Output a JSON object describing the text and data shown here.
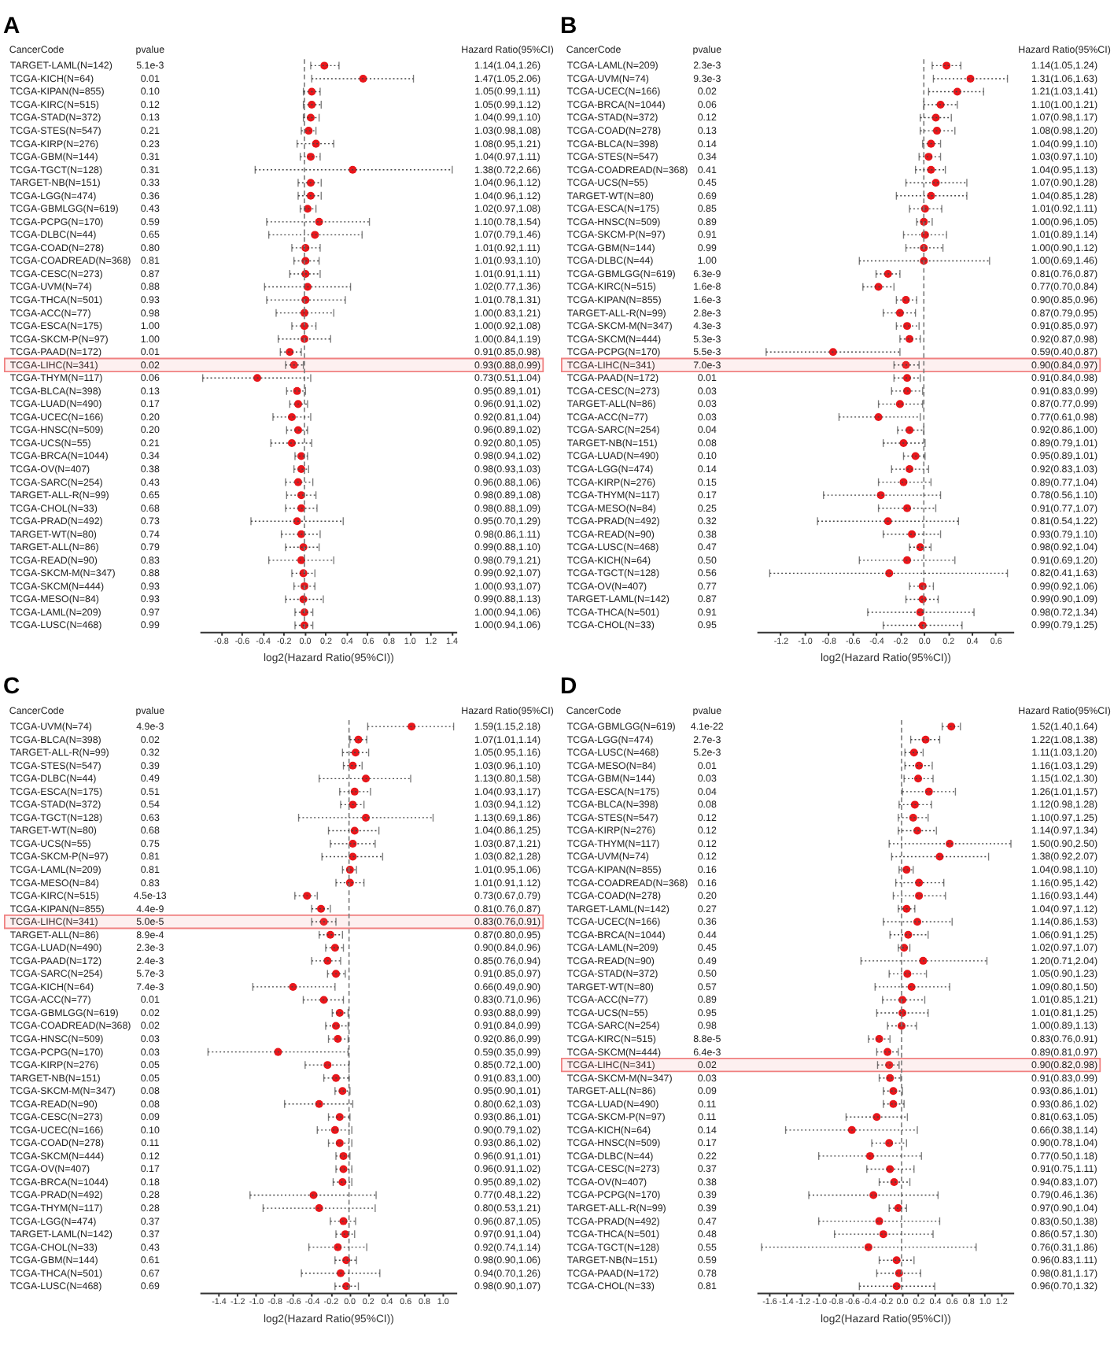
{
  "chart_data": [
    {
      "type": "scatter",
      "title": "A",
      "orientation": "horizontal",
      "marker": "circle",
      "color": "#e8161b",
      "xlabel": "log2(Hazard Ratio(95%CI))",
      "categories": [
        "TARGET-LAML(N=142)",
        "TCGA-KICH(N=64)",
        "TCGA-KIPAN(N=855)",
        "TCGA-KIRC(N=515)",
        "TCGA-STAD(N=372)",
        "TCGA-STES(N=547)",
        "TCGA-KIRP(N=276)",
        "TCGA-GBM(N=144)",
        "TCGA-TGCT(N=128)",
        "TARGET-NB(N=151)",
        "TCGA-LGG(N=474)",
        "TCGA-GBMLGG(N=619)",
        "TCGA-PCPG(N=170)",
        "TCGA-DLBC(N=44)",
        "TCGA-COAD(N=278)",
        "TCGA-COADREAD(N=368)",
        "TCGA-CESC(N=273)",
        "TCGA-UVM(N=74)",
        "TCGA-THCA(N=501)",
        "TCGA-ACC(N=77)",
        "TCGA-ESCA(N=175)",
        "TCGA-SKCM-P(N=97)",
        "TCGA-PAAD(N=172)",
        "TCGA-LIHC(N=341)",
        "TCGA-THYM(N=117)",
        "TCGA-BLCA(N=398)",
        "TCGA-LUAD(N=490)",
        "TCGA-UCEC(N=166)",
        "TCGA-HNSC(N=509)",
        "TCGA-UCS(N=55)",
        "TCGA-BRCA(N=1044)",
        "TCGA-OV(N=407)",
        "TCGA-SARC(N=254)",
        "TARGET-ALL-R(N=99)",
        "TCGA-CHOL(N=33)",
        "TCGA-PRAD(N=492)",
        "TARGET-WT(N=80)",
        "TARGET-ALL(N=86)",
        "TCGA-READ(N=90)",
        "TCGA-SKCM-M(N=347)",
        "TCGA-SKCM(N=444)",
        "TCGA-MESO(N=84)",
        "TCGA-LAML(N=209)",
        "TCGA-LUSC(N=468)"
      ],
      "values": [
        0.19,
        0.56,
        0.07,
        0.07,
        0.06,
        0.04,
        0.11,
        0.06,
        0.46,
        0.06,
        0.06,
        0.03,
        0.14,
        0.1,
        0.01,
        0.01,
        0.01,
        0.03,
        0.01,
        0,
        0,
        0,
        -0.14,
        -0.1,
        -0.45,
        -0.07,
        -0.06,
        -0.12,
        -0.06,
        -0.12,
        -0.03,
        -0.03,
        -0.06,
        -0.03,
        -0.03,
        -0.07,
        -0.03,
        -0.01,
        -0.03,
        -0.01,
        0,
        -0.01,
        0,
        0
      ],
      "errors": [
        [
          0.06,
          0.33
        ],
        [
          0.07,
          1.04
        ],
        [
          -0.01,
          0.15
        ],
        [
          -0.01,
          0.16
        ],
        [
          -0.01,
          0.14
        ],
        [
          -0.03,
          0.11
        ],
        [
          -0.07,
          0.28
        ],
        [
          -0.04,
          0.15
        ],
        [
          -0.47,
          1.41
        ],
        [
          -0.06,
          0.16
        ],
        [
          -0.06,
          0.16
        ],
        [
          -0.04,
          0.11
        ],
        [
          -0.36,
          0.62
        ],
        [
          -0.34,
          0.55
        ],
        [
          -0.12,
          0.15
        ],
        [
          -0.1,
          0.14
        ],
        [
          -0.14,
          0.15
        ],
        [
          -0.38,
          0.44
        ],
        [
          -0.36,
          0.39
        ],
        [
          -0.27,
          0.28
        ],
        [
          -0.12,
          0.11
        ],
        [
          -0.25,
          0.25
        ],
        [
          -0.23,
          -0.03
        ],
        [
          -0.18,
          -0.01
        ],
        [
          -0.97,
          0.06
        ],
        [
          -0.17,
          0.01
        ],
        [
          -0.14,
          0.03
        ],
        [
          -0.3,
          0.06
        ],
        [
          -0.17,
          0.03
        ],
        [
          -0.32,
          0.07
        ],
        [
          -0.09,
          0.03
        ],
        [
          -0.1,
          0.04
        ],
        [
          -0.18,
          0.08
        ],
        [
          -0.17,
          0.11
        ],
        [
          -0.18,
          0.12
        ],
        [
          -0.51,
          0.37
        ],
        [
          -0.22,
          0.15
        ],
        [
          -0.18,
          0.14
        ],
        [
          -0.34,
          0.28
        ],
        [
          -0.12,
          0.1
        ],
        [
          -0.1,
          0.1
        ],
        [
          -0.18,
          0.18
        ],
        [
          -0.09,
          0.08
        ],
        [
          -0.09,
          0.08
        ]
      ],
      "value_labels": [
        "1.14(1.04,1.26)",
        "1.47(1.05,2.06)",
        "1.05(0.99,1.11)",
        "1.05(0.99,1.12)",
        "1.04(0.99,1.10)",
        "1.03(0.98,1.08)",
        "1.08(0.95,1.21)",
        "1.04(0.97,1.11)",
        "1.38(0.72,2.66)",
        "1.04(0.96,1.12)",
        "1.04(0.96,1.12)",
        "1.02(0.97,1.08)",
        "1.10(0.78,1.54)",
        "1.07(0.79,1.46)",
        "1.01(0.92,1.11)",
        "1.01(0.93,1.10)",
        "1.01(0.91,1.11)",
        "1.02(0.77,1.36)",
        "1.01(0.78,1.31)",
        "1.00(0.83,1.21)",
        "1.00(0.92,1.08)",
        "1.00(0.84,1.19)",
        "0.91(0.85,0.98)",
        "0.93(0.88,0.99)",
        "0.73(0.51,1.04)",
        "0.95(0.89,1.01)",
        "0.96(0.91,1.02)",
        "0.92(0.81,1.04)",
        "0.96(0.89,1.02)",
        "0.92(0.80,1.05)",
        "0.98(0.94,1.02)",
        "0.98(0.93,1.03)",
        "0.96(0.88,1.06)",
        "0.98(0.89,1.08)",
        "0.98(0.88,1.09)",
        "0.95(0.70,1.29)",
        "0.98(0.86,1.11)",
        "0.99(0.88,1.10)",
        "0.98(0.79,1.21)",
        "0.99(0.92,1.07)",
        "1.00(0.93,1.07)",
        "0.99(0.88,1.13)",
        "1.00(0.94,1.06)",
        "1.00(0.94,1.06)"
      ],
      "annotations": [
        "CancerCode",
        "pvalue",
        "Hazard Ratio(95%CI)",
        "5.1e-3",
        "0.01",
        "0.10",
        "0.12",
        "0.13",
        "0.21",
        "0.23",
        "0.31",
        "0.31",
        "0.33",
        "0.36",
        "0.43",
        "0.59",
        "0.65",
        "0.80",
        "0.81",
        "0.87",
        "0.88",
        "0.93",
        "0.98",
        "1.00",
        "1.00",
        "0.01",
        "0.02",
        "0.06",
        "0.13",
        "0.17",
        "0.20",
        "0.20",
        "0.21",
        "0.34",
        "0.38",
        "0.43",
        "0.65",
        "0.68",
        "0.73",
        "0.74",
        "0.79",
        "0.83",
        "0.88",
        "0.93",
        "0.93",
        "0.97",
        "0.99"
      ],
      "xlim": [
        -1.0,
        1.45
      ],
      "xticks": [
        -0.8,
        -0.6,
        -0.4,
        -0.2,
        {
          "value": 0,
          "label": "0.0"
        },
        0.2,
        0.4,
        0.6,
        0.8,
        {
          "value": 1,
          "label": "1.0"
        },
        1.2,
        1.4
      ],
      "ref_lines": [
        {
          "axis": "x",
          "value": 0,
          "line_style": "dashed",
          "color": "#777777"
        }
      ],
      "bands": [
        {
          "axis": "y",
          "from": "TCGA-LIHC(N=341)",
          "to": "TCGA-LIHC(N=341)",
          "color": "#f08080"
        }
      ]
    },
    {
      "type": "scatter",
      "title": "B",
      "orientation": "horizontal",
      "marker": "circle",
      "color": "#e8161b",
      "xlabel": "log2(Hazard Ratio(95%CI))",
      "categories": [
        "TCGA-LAML(N=209)",
        "TCGA-UVM(N=74)",
        "TCGA-UCEC(N=166)",
        "TCGA-BRCA(N=1044)",
        "TCGA-STAD(N=372)",
        "TCGA-COAD(N=278)",
        "TCGA-BLCA(N=398)",
        "TCGA-STES(N=547)",
        "TCGA-COADREAD(N=368)",
        "TCGA-UCS(N=55)",
        "TARGET-WT(N=80)",
        "TCGA-ESCA(N=175)",
        "TCGA-HNSC(N=509)",
        "TCGA-SKCM-P(N=97)",
        "TCGA-GBM(N=144)",
        "TCGA-DLBC(N=44)",
        "TCGA-GBMLGG(N=619)",
        "TCGA-KIRC(N=515)",
        "TCGA-KIPAN(N=855)",
        "TARGET-ALL-R(N=99)",
        "TCGA-SKCM-M(N=347)",
        "TCGA-SKCM(N=444)",
        "TCGA-PCPG(N=170)",
        "TCGA-LIHC(N=341)",
        "TCGA-PAAD(N=172)",
        "TCGA-CESC(N=273)",
        "TARGET-ALL(N=86)",
        "TCGA-ACC(N=77)",
        "TCGA-SARC(N=254)",
        "TARGET-NB(N=151)",
        "TCGA-LUAD(N=490)",
        "TCGA-LGG(N=474)",
        "TCGA-KIRP(N=276)",
        "TCGA-THYM(N=117)",
        "TCGA-MESO(N=84)",
        "TCGA-PRAD(N=492)",
        "TCGA-READ(N=90)",
        "TCGA-LUSC(N=468)",
        "TCGA-KICH(N=64)",
        "TCGA-TGCT(N=128)",
        "TCGA-OV(N=407)",
        "TARGET-LAML(N=142)",
        "TCGA-THCA(N=501)",
        "TCGA-CHOL(N=33)"
      ],
      "values": [
        0.19,
        0.39,
        0.28,
        0.14,
        0.1,
        0.11,
        0.06,
        0.04,
        0.06,
        0.1,
        0.06,
        0.01,
        0,
        0.01,
        0,
        0,
        -0.3,
        -0.38,
        -0.15,
        -0.2,
        -0.14,
        -0.12,
        -0.76,
        -0.15,
        -0.14,
        -0.14,
        -0.2,
        -0.38,
        -0.12,
        -0.17,
        -0.07,
        -0.12,
        -0.17,
        -0.36,
        -0.14,
        -0.3,
        -0.1,
        -0.03,
        -0.14,
        -0.29,
        -0.01,
        -0.01,
        -0.03,
        -0.01
      ],
      "errors": [
        [
          0.07,
          0.31
        ],
        [
          0.08,
          0.7
        ],
        [
          0.04,
          0.5
        ],
        [
          0,
          0.28
        ],
        [
          -0.03,
          0.23
        ],
        [
          -0.03,
          0.26
        ],
        [
          -0.01,
          0.14
        ],
        [
          -0.04,
          0.14
        ],
        [
          -0.07,
          0.18
        ],
        [
          -0.15,
          0.36
        ],
        [
          -0.23,
          0.36
        ],
        [
          -0.12,
          0.15
        ],
        [
          -0.06,
          0.07
        ],
        [
          -0.17,
          0.19
        ],
        [
          -0.15,
          0.16
        ],
        [
          -0.54,
          0.55
        ],
        [
          -0.4,
          -0.2
        ],
        [
          -0.51,
          -0.25
        ],
        [
          -0.23,
          -0.06
        ],
        [
          -0.34,
          -0.07
        ],
        [
          -0.23,
          -0.04
        ],
        [
          -0.2,
          -0.03
        ],
        [
          -1.32,
          -0.2
        ],
        [
          -0.25,
          -0.04
        ],
        [
          -0.25,
          -0.03
        ],
        [
          -0.27,
          -0.01
        ],
        [
          -0.38,
          -0.01
        ],
        [
          -0.71,
          -0.03
        ],
        [
          -0.22,
          0
        ],
        [
          -0.34,
          0.01
        ],
        [
          -0.17,
          0.01
        ],
        [
          -0.27,
          0.04
        ],
        [
          -0.38,
          0.06
        ],
        [
          -0.84,
          0.14
        ],
        [
          -0.38,
          0.1
        ],
        [
          -0.89,
          0.29
        ],
        [
          -0.34,
          0.14
        ],
        [
          -0.12,
          0.06
        ],
        [
          -0.54,
          0.26
        ],
        [
          -1.29,
          0.7
        ],
        [
          -0.12,
          0.08
        ],
        [
          -0.15,
          0.12
        ],
        [
          -0.47,
          0.42
        ],
        [
          -0.34,
          0.32
        ]
      ],
      "value_labels": [
        "1.14(1.05,1.24)",
        "1.31(1.06,1.63)",
        "1.21(1.03,1.41)",
        "1.10(1.00,1.21)",
        "1.07(0.98,1.17)",
        "1.08(0.98,1.20)",
        "1.04(0.99,1.10)",
        "1.03(0.97,1.10)",
        "1.04(0.95,1.13)",
        "1.07(0.90,1.28)",
        "1.04(0.85,1.28)",
        "1.01(0.92,1.11)",
        "1.00(0.96,1.05)",
        "1.01(0.89,1.14)",
        "1.00(0.90,1.12)",
        "1.00(0.69,1.46)",
        "0.81(0.76,0.87)",
        "0.77(0.70,0.84)",
        "0.90(0.85,0.96)",
        "0.87(0.79,0.95)",
        "0.91(0.85,0.97)",
        "0.92(0.87,0.98)",
        "0.59(0.40,0.87)",
        "0.90(0.84,0.97)",
        "0.91(0.84,0.98)",
        "0.91(0.83,0.99)",
        "0.87(0.77,0.99)",
        "0.77(0.61,0.98)",
        "0.92(0.86,1.00)",
        "0.89(0.79,1.01)",
        "0.95(0.89,1.01)",
        "0.92(0.83,1.03)",
        "0.89(0.77,1.04)",
        "0.78(0.56,1.10)",
        "0.91(0.77,1.07)",
        "0.81(0.54,1.22)",
        "0.93(0.79,1.10)",
        "0.98(0.92,1.04)",
        "0.91(0.69,1.20)",
        "0.82(0.41,1.63)",
        "0.99(0.92,1.06)",
        "0.99(0.90,1.09)",
        "0.98(0.72,1.34)",
        "0.99(0.79,1.25)"
      ],
      "annotations": [
        "CancerCode",
        "pvalue",
        "Hazard Ratio(95%CI)",
        "2.3e-3",
        "9.3e-3",
        "0.02",
        "0.06",
        "0.12",
        "0.13",
        "0.14",
        "0.34",
        "0.41",
        "0.45",
        "0.69",
        "0.85",
        "0.89",
        "0.91",
        "0.99",
        "1.00",
        "6.3e-9",
        "1.6e-8",
        "1.6e-3",
        "2.8e-3",
        "4.3e-3",
        "5.3e-3",
        "5.5e-3",
        "7.0e-3",
        "0.01",
        "0.03",
        "0.03",
        "0.03",
        "0.04",
        "0.08",
        "0.10",
        "0.14",
        "0.15",
        "0.17",
        "0.25",
        "0.32",
        "0.38",
        "0.47",
        "0.50",
        "0.56",
        "0.77",
        "0.87",
        "0.91",
        "0.95"
      ],
      "xlim": [
        -1.4,
        0.75
      ],
      "xticks": [
        -1.2,
        {
          "value": -1,
          "label": "-1.0"
        },
        -0.8,
        -0.6,
        -0.4,
        -0.2,
        {
          "value": 0,
          "label": "0.0"
        },
        0.2,
        0.4,
        0.6
      ],
      "ref_lines": [
        {
          "axis": "x",
          "value": 0,
          "line_style": "dashed",
          "color": "#777777"
        }
      ],
      "bands": [
        {
          "axis": "y",
          "from": "TCGA-LIHC(N=341)",
          "to": "TCGA-LIHC(N=341)",
          "color": "#f08080"
        }
      ]
    },
    {
      "type": "scatter",
      "title": "C",
      "orientation": "horizontal",
      "marker": "circle",
      "color": "#e8161b",
      "xlabel": "log2(Hazard Ratio(95%CI))",
      "categories": [
        "TCGA-UVM(N=74)",
        "TCGA-BLCA(N=398)",
        "TARGET-ALL-R(N=99)",
        "TCGA-STES(N=547)",
        "TCGA-DLBC(N=44)",
        "TCGA-ESCA(N=175)",
        "TCGA-STAD(N=372)",
        "TCGA-TGCT(N=128)",
        "TARGET-WT(N=80)",
        "TCGA-UCS(N=55)",
        "TCGA-SKCM-P(N=97)",
        "TCGA-LAML(N=209)",
        "TCGA-MESO(N=84)",
        "TCGA-KIRC(N=515)",
        "TCGA-KIPAN(N=855)",
        "TCGA-LIHC(N=341)",
        "TARGET-ALL(N=86)",
        "TCGA-LUAD(N=490)",
        "TCGA-PAAD(N=172)",
        "TCGA-SARC(N=254)",
        "TCGA-KICH(N=64)",
        "TCGA-ACC(N=77)",
        "TCGA-GBMLGG(N=619)",
        "TCGA-COADREAD(N=368)",
        "TCGA-HNSC(N=509)",
        "TCGA-PCPG(N=170)",
        "TCGA-KIRP(N=276)",
        "TARGET-NB(N=151)",
        "TCGA-SKCM-M(N=347)",
        "TCGA-READ(N=90)",
        "TCGA-CESC(N=273)",
        "TCGA-UCEC(N=166)",
        "TCGA-COAD(N=278)",
        "TCGA-SKCM(N=444)",
        "TCGA-OV(N=407)",
        "TCGA-BRCA(N=1044)",
        "TCGA-PRAD(N=492)",
        "TCGA-THYM(N=117)",
        "TCGA-LGG(N=474)",
        "TARGET-LAML(N=142)",
        "TCGA-CHOL(N=33)",
        "TCGA-GBM(N=144)",
        "TCGA-THCA(N=501)",
        "TCGA-LUSC(N=468)"
      ],
      "values": [
        0.67,
        0.1,
        0.07,
        0.04,
        0.18,
        0.06,
        0.04,
        0.18,
        0.06,
        0.04,
        0.04,
        0.01,
        0.01,
        -0.45,
        -0.3,
        -0.27,
        -0.2,
        -0.15,
        -0.23,
        -0.14,
        -0.6,
        -0.27,
        -0.1,
        -0.14,
        -0.12,
        -0.76,
        -0.23,
        -0.14,
        -0.07,
        -0.32,
        -0.1,
        -0.15,
        -0.1,
        -0.06,
        -0.06,
        -0.07,
        -0.38,
        -0.32,
        -0.06,
        -0.04,
        -0.12,
        -0.03,
        -0.09,
        -0.03
      ],
      "errors": [
        [
          0.2,
          1.12
        ],
        [
          0.01,
          0.19
        ],
        [
          -0.07,
          0.21
        ],
        [
          -0.06,
          0.14
        ],
        [
          -0.32,
          0.66
        ],
        [
          -0.1,
          0.23
        ],
        [
          -0.09,
          0.16
        ],
        [
          -0.54,
          0.9
        ],
        [
          -0.22,
          0.32
        ],
        [
          -0.2,
          0.28
        ],
        [
          -0.29,
          0.36
        ],
        [
          -0.07,
          0.08
        ],
        [
          -0.14,
          0.16
        ],
        [
          -0.58,
          -0.34
        ],
        [
          -0.4,
          -0.2
        ],
        [
          -0.4,
          -0.14
        ],
        [
          -0.32,
          -0.07
        ],
        [
          -0.25,
          -0.06
        ],
        [
          -0.4,
          -0.09
        ],
        [
          -0.23,
          -0.04
        ],
        [
          -1.03,
          -0.15
        ],
        [
          -0.49,
          -0.06
        ],
        [
          -0.18,
          -0.01
        ],
        [
          -0.25,
          -0.01
        ],
        [
          -0.22,
          -0.01
        ],
        [
          -1.51,
          -0.01
        ],
        [
          -0.47,
          0
        ],
        [
          -0.27,
          0
        ],
        [
          -0.15,
          0.01
        ],
        [
          -0.69,
          0.04
        ],
        [
          -0.22,
          0.01
        ],
        [
          -0.34,
          0.03
        ],
        [
          -0.22,
          0.03
        ],
        [
          -0.14,
          0.01
        ],
        [
          -0.14,
          0.03
        ],
        [
          -0.17,
          0.03
        ],
        [
          -1.06,
          0.29
        ],
        [
          -0.92,
          0.28
        ],
        [
          -0.2,
          0.07
        ],
        [
          -0.14,
          0.06
        ],
        [
          -0.43,
          0.19
        ],
        [
          -0.15,
          0.08
        ],
        [
          -0.51,
          0.33
        ],
        [
          -0.15,
          0.1
        ]
      ],
      "value_labels": [
        "1.59(1.15,2.18)",
        "1.07(1.01,1.14)",
        "1.05(0.95,1.16)",
        "1.03(0.96,1.10)",
        "1.13(0.80,1.58)",
        "1.04(0.93,1.17)",
        "1.03(0.94,1.12)",
        "1.13(0.69,1.86)",
        "1.04(0.86,1.25)",
        "1.03(0.87,1.21)",
        "1.03(0.82,1.28)",
        "1.01(0.95,1.06)",
        "1.01(0.91,1.12)",
        "0.73(0.67,0.79)",
        "0.81(0.76,0.87)",
        "0.83(0.76,0.91)",
        "0.87(0.80,0.95)",
        "0.90(0.84,0.96)",
        "0.85(0.76,0.94)",
        "0.91(0.85,0.97)",
        "0.66(0.49,0.90)",
        "0.83(0.71,0.96)",
        "0.93(0.88,0.99)",
        "0.91(0.84,0.99)",
        "0.92(0.86,0.99)",
        "0.59(0.35,0.99)",
        "0.85(0.72,1.00)",
        "0.91(0.83,1.00)",
        "0.95(0.90,1.01)",
        "0.80(0.62,1.03)",
        "0.93(0.86,1.01)",
        "0.90(0.79,1.02)",
        "0.93(0.86,1.02)",
        "0.96(0.91,1.01)",
        "0.96(0.91,1.02)",
        "0.95(0.89,1.02)",
        "0.77(0.48,1.22)",
        "0.80(0.53,1.21)",
        "0.96(0.87,1.05)",
        "0.97(0.91,1.04)",
        "0.92(0.74,1.14)",
        "0.98(0.90,1.06)",
        "0.94(0.70,1.26)",
        "0.98(0.90,1.07)"
      ],
      "annotations": [
        "CancerCode",
        "pvalue",
        "Hazard Ratio(95%CI)",
        "4.9e-3",
        "0.02",
        "0.32",
        "0.39",
        "0.49",
        "0.51",
        "0.54",
        "0.63",
        "0.68",
        "0.75",
        "0.81",
        "0.81",
        "0.83",
        "4.5e-13",
        "4.4e-9",
        "5.0e-5",
        "8.9e-4",
        "2.3e-3",
        "2.4e-3",
        "5.7e-3",
        "7.4e-3",
        "0.01",
        "0.02",
        "0.02",
        "0.03",
        "0.03",
        "0.05",
        "0.05",
        "0.08",
        "0.08",
        "0.09",
        "0.10",
        "0.11",
        "0.12",
        "0.17",
        "0.18",
        "0.28",
        "0.28",
        "0.37",
        "0.37",
        "0.43",
        "0.61",
        "0.67",
        "0.69"
      ],
      "xlim": [
        -1.6,
        1.15
      ],
      "xticks": [
        -1.4,
        -1.2,
        {
          "value": -1,
          "label": "-1.0"
        },
        -0.8,
        -0.6,
        -0.4,
        -0.2,
        {
          "value": 0,
          "label": "0.0"
        },
        0.2,
        0.4,
        0.6,
        0.8,
        {
          "value": 1,
          "label": "1.0"
        }
      ],
      "ref_lines": [
        {
          "axis": "x",
          "value": 0,
          "line_style": "dashed",
          "color": "#777777"
        }
      ],
      "bands": [
        {
          "axis": "y",
          "from": "TCGA-LIHC(N=341)",
          "to": "TCGA-LIHC(N=341)",
          "color": "#f08080"
        }
      ]
    },
    {
      "type": "scatter",
      "title": "D",
      "orientation": "horizontal",
      "marker": "circle",
      "color": "#e8161b",
      "xlabel": "log2(Hazard Ratio(95%CI))",
      "categories": [
        "TCGA-GBMLGG(N=619)",
        "TCGA-LGG(N=474)",
        "TCGA-LUSC(N=468)",
        "TCGA-MESO(N=84)",
        "TCGA-GBM(N=144)",
        "TCGA-ESCA(N=175)",
        "TCGA-BLCA(N=398)",
        "TCGA-STES(N=547)",
        "TCGA-KIRP(N=276)",
        "TCGA-THYM(N=117)",
        "TCGA-UVM(N=74)",
        "TCGA-KIPAN(N=855)",
        "TCGA-COADREAD(N=368)",
        "TCGA-COAD(N=278)",
        "TARGET-LAML(N=142)",
        "TCGA-UCEC(N=166)",
        "TCGA-BRCA(N=1044)",
        "TCGA-LAML(N=209)",
        "TCGA-READ(N=90)",
        "TCGA-STAD(N=372)",
        "TARGET-WT(N=80)",
        "TCGA-ACC(N=77)",
        "TCGA-UCS(N=55)",
        "TCGA-SARC(N=254)",
        "TCGA-KIRC(N=515)",
        "TCGA-SKCM(N=444)",
        "TCGA-LIHC(N=341)",
        "TCGA-SKCM-M(N=347)",
        "TARGET-ALL(N=86)",
        "TCGA-LUAD(N=490)",
        "TCGA-SKCM-P(N=97)",
        "TCGA-KICH(N=64)",
        "TCGA-HNSC(N=509)",
        "TCGA-DLBC(N=44)",
        "TCGA-CESC(N=273)",
        "TCGA-OV(N=407)",
        "TCGA-PCPG(N=170)",
        "TARGET-ALL-R(N=99)",
        "TCGA-PRAD(N=492)",
        "TCGA-THCA(N=501)",
        "TCGA-TGCT(N=128)",
        "TARGET-NB(N=151)",
        "TCGA-PAAD(N=172)",
        "TCGA-CHOL(N=33)"
      ],
      "values": [
        0.6,
        0.29,
        0.15,
        0.21,
        0.2,
        0.33,
        0.16,
        0.14,
        0.19,
        0.58,
        0.46,
        0.06,
        0.21,
        0.21,
        0.06,
        0.19,
        0.08,
        0.03,
        0.26,
        0.07,
        0.12,
        0.01,
        0.01,
        0,
        -0.27,
        -0.17,
        -0.15,
        -0.14,
        -0.1,
        -0.1,
        -0.3,
        -0.6,
        -0.15,
        -0.38,
        -0.14,
        -0.09,
        -0.34,
        -0.04,
        -0.27,
        -0.22,
        -0.4,
        -0.06,
        -0.03,
        -0.06
      ],
      "errors": [
        [
          0.49,
          0.71
        ],
        [
          0.11,
          0.46
        ],
        [
          0.04,
          0.26
        ],
        [
          0.04,
          0.37
        ],
        [
          0.03,
          0.38
        ],
        [
          0.01,
          0.65
        ],
        [
          -0.03,
          0.36
        ],
        [
          -0.04,
          0.32
        ],
        [
          -0.04,
          0.42
        ],
        [
          -0.15,
          1.32
        ],
        [
          -0.12,
          1.05
        ],
        [
          -0.03,
          0.14
        ],
        [
          -0.07,
          0.51
        ],
        [
          -0.1,
          0.53
        ],
        [
          -0.04,
          0.16
        ],
        [
          -0.22,
          0.61
        ],
        [
          -0.14,
          0.32
        ],
        [
          -0.04,
          0.1
        ],
        [
          -0.49,
          1.03
        ],
        [
          -0.15,
          0.3
        ],
        [
          -0.32,
          0.58
        ],
        [
          -0.23,
          0.28
        ],
        [
          -0.3,
          0.32
        ],
        [
          -0.17,
          0.18
        ],
        [
          -0.4,
          -0.14
        ],
        [
          -0.3,
          -0.04
        ],
        [
          -0.29,
          -0.03
        ],
        [
          -0.27,
          -0.01
        ],
        [
          -0.22,
          0.01
        ],
        [
          -0.22,
          0.03
        ],
        [
          -0.67,
          0.07
        ],
        [
          -1.4,
          0.19
        ],
        [
          -0.36,
          0.06
        ],
        [
          -1,
          0.24
        ],
        [
          -0.42,
          0.15
        ],
        [
          -0.27,
          0.1
        ],
        [
          -1.12,
          0.44
        ],
        [
          -0.15,
          0.06
        ],
        [
          -1,
          0.46
        ],
        [
          -0.81,
          0.38
        ],
        [
          -1.69,
          0.9
        ],
        [
          -0.27,
          0.15
        ],
        [
          -0.3,
          0.23
        ],
        [
          -0.51,
          0.4
        ]
      ],
      "value_labels": [
        "1.52(1.40,1.64)",
        "1.22(1.08,1.38)",
        "1.11(1.03,1.20)",
        "1.16(1.03,1.29)",
        "1.15(1.02,1.30)",
        "1.26(1.01,1.57)",
        "1.12(0.98,1.28)",
        "1.10(0.97,1.25)",
        "1.14(0.97,1.34)",
        "1.50(0.90,2.50)",
        "1.38(0.92,2.07)",
        "1.04(0.98,1.10)",
        "1.16(0.95,1.42)",
        "1.16(0.93,1.44)",
        "1.04(0.97,1.12)",
        "1.14(0.86,1.53)",
        "1.06(0.91,1.25)",
        "1.02(0.97,1.07)",
        "1.20(0.71,2.04)",
        "1.05(0.90,1.23)",
        "1.09(0.80,1.50)",
        "1.01(0.85,1.21)",
        "1.01(0.81,1.25)",
        "1.00(0.89,1.13)",
        "0.83(0.76,0.91)",
        "0.89(0.81,0.97)",
        "0.90(0.82,0.98)",
        "0.91(0.83,0.99)",
        "0.93(0.86,1.01)",
        "0.93(0.86,1.02)",
        "0.81(0.63,1.05)",
        "0.66(0.38,1.14)",
        "0.90(0.78,1.04)",
        "0.77(0.50,1.18)",
        "0.91(0.75,1.11)",
        "0.94(0.83,1.07)",
        "0.79(0.46,1.36)",
        "0.97(0.90,1.04)",
        "0.83(0.50,1.38)",
        "0.86(0.57,1.30)",
        "0.76(0.31,1.86)",
        "0.96(0.83,1.11)",
        "0.98(0.81,1.17)",
        "0.96(0.70,1.32)"
      ],
      "annotations": [
        "CancerCode",
        "pvalue",
        "Hazard Ratio(95%CI)",
        "4.1e-22",
        "2.7e-3",
        "5.2e-3",
        "0.01",
        "0.03",
        "0.04",
        "0.08",
        "0.12",
        "0.12",
        "0.12",
        "0.12",
        "0.16",
        "0.16",
        "0.20",
        "0.27",
        "0.36",
        "0.44",
        "0.45",
        "0.49",
        "0.50",
        "0.57",
        "0.89",
        "0.95",
        "0.98",
        "8.8e-5",
        "6.4e-3",
        "0.02",
        "0.03",
        "0.09",
        "0.11",
        "0.11",
        "0.14",
        "0.17",
        "0.22",
        "0.37",
        "0.38",
        "0.39",
        "0.39",
        "0.47",
        "0.48",
        "0.55",
        "0.59",
        "0.78",
        "0.81"
      ],
      "xlim": [
        -1.75,
        1.35
      ],
      "xticks": [
        -1.6,
        -1.4,
        -1.2,
        {
          "value": -1,
          "label": "-1.0"
        },
        -0.8,
        -0.6,
        -0.4,
        -0.2,
        {
          "value": 0,
          "label": "0.0"
        },
        0.2,
        0.4,
        0.6,
        0.8,
        {
          "value": 1,
          "label": "1.0"
        },
        1.2
      ],
      "ref_lines": [
        {
          "axis": "x",
          "value": 0,
          "line_style": "dashed",
          "color": "#777777"
        }
      ],
      "bands": [
        {
          "axis": "y",
          "from": "TCGA-LIHC(N=341)",
          "to": "TCGA-LIHC(N=341)",
          "color": "#f08080"
        }
      ]
    }
  ]
}
